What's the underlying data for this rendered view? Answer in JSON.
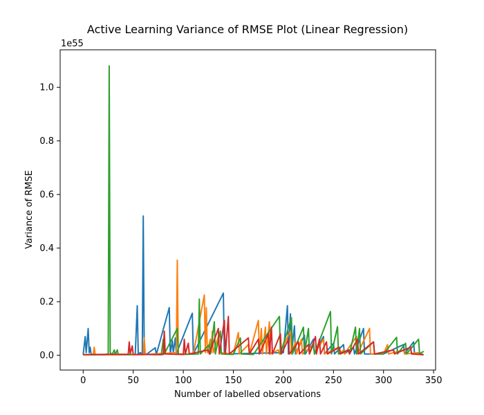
{
  "chart_data": {
    "type": "line",
    "title": "Active Learning Variance of RMSE Plot (Linear Regression)",
    "xlabel": "Number of labelled observations",
    "ylabel": "Variance of RMSE",
    "y_offset_label": "1e55",
    "y_units_note": "values in units of 1e55",
    "xlim": [
      -23,
      352
    ],
    "ylim": [
      -0.055,
      1.14
    ],
    "x_ticks": [
      0,
      50,
      100,
      150,
      200,
      250,
      300,
      350
    ],
    "y_ticks": [
      0.0,
      0.2,
      0.4,
      0.6,
      0.8,
      1.0
    ],
    "x_tick_labels": [
      "0",
      "50",
      "100",
      "150",
      "200",
      "250",
      "300",
      "350"
    ],
    "y_tick_labels": [
      "0.0",
      "0.2",
      "0.4",
      "0.6",
      "0.8",
      "1.0"
    ],
    "grid": false,
    "legend": "none",
    "series": [
      {
        "color": "#1f77b4",
        "points": [
          [
            0,
            0.002
          ],
          [
            2,
            0.07
          ],
          [
            3,
            0.01
          ],
          [
            5,
            0.1
          ],
          [
            6,
            0.01
          ],
          [
            7,
            0.03
          ],
          [
            8,
            0.002
          ],
          [
            20,
            0.002
          ],
          [
            48,
            0.002
          ],
          [
            52,
            0.003
          ],
          [
            54,
            0.185
          ],
          [
            55,
            0.005
          ],
          [
            57,
            0.01
          ],
          [
            59,
            0.005
          ],
          [
            60,
            0.52
          ],
          [
            61,
            0.01
          ],
          [
            63,
            0.003
          ],
          [
            72,
            0.028
          ],
          [
            73,
            0.002
          ],
          [
            86,
            0.178
          ],
          [
            87,
            0.005
          ],
          [
            89,
            0.055
          ],
          [
            90,
            0.01
          ],
          [
            92,
            0.065
          ],
          [
            93,
            0.005
          ],
          [
            109,
            0.157
          ],
          [
            110,
            0.005
          ],
          [
            140,
            0.232
          ],
          [
            141,
            0.005
          ],
          [
            200,
            0.01
          ],
          [
            204,
            0.185
          ],
          [
            205,
            0.005
          ],
          [
            207,
            0.155
          ],
          [
            208,
            0.005
          ],
          [
            211,
            0.11
          ],
          [
            212,
            0.005
          ],
          [
            221,
            0.075
          ],
          [
            222,
            0.005
          ],
          [
            230,
            0.06
          ],
          [
            231,
            0.005
          ],
          [
            240,
            0.07
          ],
          [
            241,
            0.005
          ],
          [
            250,
            0.045
          ],
          [
            251,
            0.005
          ],
          [
            260,
            0.04
          ],
          [
            261,
            0.005
          ],
          [
            270,
            0.03
          ],
          [
            271,
            0.005
          ],
          [
            280,
            0.1
          ],
          [
            281,
            0.005
          ],
          [
            300,
            0.005
          ],
          [
            320,
            0.04
          ],
          [
            321,
            0.005
          ],
          [
            330,
            0.05
          ],
          [
            331,
            0.005
          ],
          [
            340,
            0.002
          ]
        ]
      },
      {
        "color": "#ff7f0e",
        "points": [
          [
            0,
            0.002
          ],
          [
            10,
            0.003
          ],
          [
            11,
            0.03
          ],
          [
            12,
            0.002
          ],
          [
            60,
            0.002
          ],
          [
            61,
            0.065
          ],
          [
            62,
            0.003
          ],
          [
            93,
            0.01
          ],
          [
            94,
            0.355
          ],
          [
            95,
            0.005
          ],
          [
            110,
            0.005
          ],
          [
            121,
            0.225
          ],
          [
            122,
            0.01
          ],
          [
            123,
            0.178
          ],
          [
            124,
            0.01
          ],
          [
            127,
            0.06
          ],
          [
            128,
            0.01
          ],
          [
            129,
            0.09
          ],
          [
            130,
            0.01
          ],
          [
            135,
            0.07
          ],
          [
            136,
            0.01
          ],
          [
            150,
            0.005
          ],
          [
            155,
            0.085
          ],
          [
            156,
            0.005
          ],
          [
            165,
            0.04
          ],
          [
            166,
            0.005
          ],
          [
            175,
            0.13
          ],
          [
            176,
            0.005
          ],
          [
            178,
            0.1
          ],
          [
            179,
            0.005
          ],
          [
            182,
            0.105
          ],
          [
            183,
            0.005
          ],
          [
            186,
            0.125
          ],
          [
            187,
            0.005
          ],
          [
            195,
            0.02
          ],
          [
            196,
            0.005
          ],
          [
            207,
            0.09
          ],
          [
            208,
            0.005
          ],
          [
            212,
            0.05
          ],
          [
            213,
            0.005
          ],
          [
            218,
            0.06
          ],
          [
            219,
            0.005
          ],
          [
            230,
            0.04
          ],
          [
            231,
            0.005
          ],
          [
            240,
            0.06
          ],
          [
            241,
            0.005
          ],
          [
            255,
            0.03
          ],
          [
            256,
            0.005
          ],
          [
            260,
            0.02
          ],
          [
            261,
            0.005
          ],
          [
            273,
            0.07
          ],
          [
            274,
            0.005
          ],
          [
            286,
            0.1
          ],
          [
            287,
            0.005
          ],
          [
            300,
            0.005
          ],
          [
            304,
            0.04
          ],
          [
            305,
            0.005
          ],
          [
            320,
            0.02
          ],
          [
            321,
            0.005
          ],
          [
            335,
            0.01
          ],
          [
            340,
            0.002
          ]
        ]
      },
      {
        "color": "#2ca02c",
        "points": [
          [
            0,
            0.002
          ],
          [
            20,
            0.002
          ],
          [
            25,
            0.005
          ],
          [
            26,
            1.08
          ],
          [
            27,
            0.01
          ],
          [
            29,
            0.003
          ],
          [
            31,
            0.02
          ],
          [
            32,
            0.003
          ],
          [
            34,
            0.02
          ],
          [
            35,
            0.003
          ],
          [
            60,
            0.003
          ],
          [
            78,
            0.002
          ],
          [
            80,
            0.06
          ],
          [
            81,
            0.005
          ],
          [
            94,
            0.1
          ],
          [
            95,
            0.005
          ],
          [
            100,
            0.003
          ],
          [
            115,
            0.005
          ],
          [
            116,
            0.21
          ],
          [
            117,
            0.005
          ],
          [
            126,
            0.04
          ],
          [
            127,
            0.005
          ],
          [
            131,
            0.125
          ],
          [
            132,
            0.005
          ],
          [
            137,
            0.09
          ],
          [
            138,
            0.005
          ],
          [
            150,
            0.003
          ],
          [
            157,
            0.065
          ],
          [
            158,
            0.005
          ],
          [
            170,
            0.003
          ],
          [
            196,
            0.145
          ],
          [
            197,
            0.005
          ],
          [
            208,
            0.14
          ],
          [
            209,
            0.005
          ],
          [
            220,
            0.105
          ],
          [
            221,
            0.005
          ],
          [
            225,
            0.1
          ],
          [
            226,
            0.005
          ],
          [
            230,
            0.04
          ],
          [
            231,
            0.005
          ],
          [
            247,
            0.163
          ],
          [
            248,
            0.005
          ],
          [
            254,
            0.107
          ],
          [
            255,
            0.005
          ],
          [
            265,
            0.02
          ],
          [
            266,
            0.005
          ],
          [
            272,
            0.105
          ],
          [
            273,
            0.005
          ],
          [
            276,
            0.1
          ],
          [
            277,
            0.005
          ],
          [
            290,
            0.05
          ],
          [
            291,
            0.005
          ],
          [
            300,
            0.005
          ],
          [
            313,
            0.067
          ],
          [
            314,
            0.005
          ],
          [
            322,
            0.045
          ],
          [
            323,
            0.005
          ],
          [
            335,
            0.06
          ],
          [
            336,
            0.005
          ],
          [
            340,
            0.015
          ]
        ]
      },
      {
        "color": "#d62728",
        "points": [
          [
            0,
            0.002
          ],
          [
            10,
            0.003
          ],
          [
            45,
            0.004
          ],
          [
            46,
            0.05
          ],
          [
            47,
            0.005
          ],
          [
            49,
            0.035
          ],
          [
            50,
            0.003
          ],
          [
            80,
            0.003
          ],
          [
            81,
            0.09
          ],
          [
            82,
            0.005
          ],
          [
            100,
            0.003
          ],
          [
            101,
            0.06
          ],
          [
            102,
            0.005
          ],
          [
            105,
            0.045
          ],
          [
            106,
            0.005
          ],
          [
            125,
            0.02
          ],
          [
            126,
            0.005
          ],
          [
            135,
            0.1
          ],
          [
            136,
            0.005
          ],
          [
            141,
            0.13
          ],
          [
            142,
            0.005
          ],
          [
            145,
            0.145
          ],
          [
            146,
            0.005
          ],
          [
            165,
            0.065
          ],
          [
            166,
            0.005
          ],
          [
            175,
            0.06
          ],
          [
            176,
            0.005
          ],
          [
            185,
            0.08
          ],
          [
            186,
            0.005
          ],
          [
            188,
            0.105
          ],
          [
            189,
            0.005
          ],
          [
            197,
            0.08
          ],
          [
            198,
            0.005
          ],
          [
            205,
            0.06
          ],
          [
            206,
            0.005
          ],
          [
            215,
            0.05
          ],
          [
            216,
            0.005
          ],
          [
            225,
            0.04
          ],
          [
            226,
            0.005
          ],
          [
            232,
            0.07
          ],
          [
            233,
            0.005
          ],
          [
            236,
            0.06
          ],
          [
            237,
            0.005
          ],
          [
            243,
            0.05
          ],
          [
            244,
            0.005
          ],
          [
            256,
            0.03
          ],
          [
            257,
            0.005
          ],
          [
            265,
            0.02
          ],
          [
            266,
            0.005
          ],
          [
            274,
            0.06
          ],
          [
            275,
            0.005
          ],
          [
            290,
            0.05
          ],
          [
            291,
            0.005
          ],
          [
            310,
            0.02
          ],
          [
            311,
            0.005
          ],
          [
            327,
            0.03
          ],
          [
            328,
            0.005
          ],
          [
            340,
            0.002
          ]
        ]
      }
    ]
  }
}
